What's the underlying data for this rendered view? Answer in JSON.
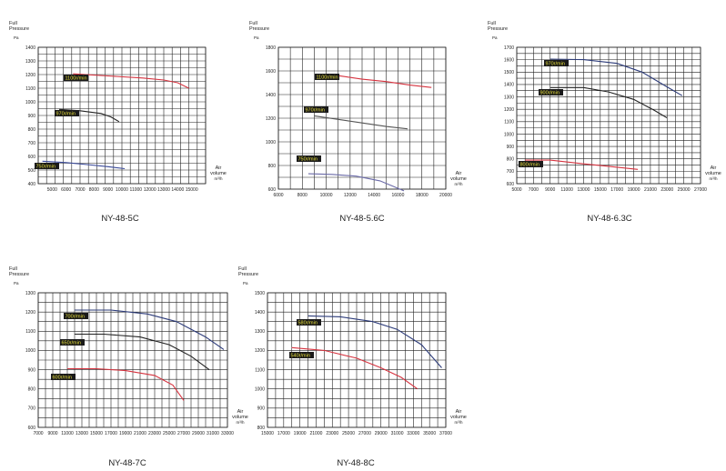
{
  "chart_data": [
    {
      "type": "line",
      "title": "NY-48-5C",
      "ylabel_lines": [
        "Full",
        "Pressure",
        "Pa"
      ],
      "xlabel_lines": [
        "Air",
        "volume",
        "m³/h"
      ],
      "xticks": [
        "5000",
        "6000",
        "7000",
        "8000",
        "9000",
        "10000",
        "11000",
        "12000",
        "13000",
        "14000",
        "15000"
      ],
      "yticks": [
        "400",
        "500",
        "600",
        "700",
        "800",
        "900",
        "1000",
        "1100",
        "1200",
        "1300",
        "1400"
      ],
      "xlim": [
        4000,
        16000
      ],
      "ylim": [
        400,
        1400
      ],
      "series": [
        {
          "name": "1100r/min",
          "color": "#d6333f",
          "x": [
            6500,
            9000,
            11500,
            13000,
            14000,
            14800
          ],
          "y": [
            1205,
            1190,
            1175,
            1160,
            1140,
            1100
          ]
        },
        {
          "name": "970r/min",
          "color": "#222222",
          "x": [
            5500,
            7000,
            8500,
            9200,
            9800
          ],
          "y": [
            945,
            935,
            915,
            890,
            855
          ]
        },
        {
          "name": "750r/min",
          "color": "#3a4a9a",
          "x": [
            4300,
            6000,
            7500,
            9000,
            10200
          ],
          "y": [
            565,
            555,
            540,
            525,
            510
          ]
        }
      ]
    },
    {
      "type": "line",
      "title": "NY-48-5.6C",
      "ylabel_lines": [
        "Full",
        "Pressure",
        "Pa"
      ],
      "xlabel_lines": [
        "Air",
        "volume",
        "m³/h"
      ],
      "xticks": [
        "6000",
        "8000",
        "10000",
        "12000",
        "14000",
        "16000",
        "18000",
        "20000"
      ],
      "yticks": [
        "600",
        "800",
        "1000",
        "1200",
        "1400",
        "1600",
        "1800"
      ],
      "xlim": [
        6000,
        20000
      ],
      "ylim": [
        600,
        1800
      ],
      "series": [
        {
          "name": "1100r/min",
          "color": "#d6333f",
          "x": [
            9500,
            11000,
            13000,
            15000,
            17000,
            18800
          ],
          "y": [
            1560,
            1560,
            1530,
            1510,
            1480,
            1460
          ]
        },
        {
          "name": "970r/min",
          "color": "#555555",
          "x": [
            9000,
            11000,
            13000,
            15000,
            16800
          ],
          "y": [
            1220,
            1190,
            1160,
            1130,
            1110
          ]
        },
        {
          "name": "750r/min",
          "color": "#6a6aa8",
          "x": [
            8500,
            10500,
            12500,
            14500,
            16500
          ],
          "y": [
            730,
            725,
            710,
            670,
            585
          ]
        }
      ]
    },
    {
      "type": "line",
      "title": "NY-48-6.3C",
      "ylabel_lines": [
        "Full",
        "Pressure",
        "Pa"
      ],
      "xlabel_lines": [
        "Air",
        "volume",
        "m³/h"
      ],
      "xticks": [
        "5000",
        "7000",
        "9000",
        "11000",
        "13000",
        "15000",
        "17000",
        "19000",
        "21000",
        "23000",
        "25000",
        "27000"
      ],
      "yticks": [
        "600",
        "700",
        "800",
        "900",
        "1000",
        "1100",
        "1200",
        "1300",
        "1400",
        "1500",
        "1600",
        "1700"
      ],
      "xlim": [
        5000,
        27000
      ],
      "ylim": [
        600,
        1700
      ],
      "series": [
        {
          "name": "970r/min",
          "color": "#2d3c7a",
          "x": [
            9000,
            13000,
            17000,
            20000,
            23000,
            24800
          ],
          "y": [
            1605,
            1600,
            1570,
            1500,
            1380,
            1310
          ]
        },
        {
          "name": "900r/min",
          "color": "#222222",
          "x": [
            9000,
            13000,
            16000,
            19000,
            21500,
            23000
          ],
          "y": [
            1375,
            1375,
            1340,
            1280,
            1190,
            1130
          ]
        },
        {
          "name": "800r/min",
          "color": "#d6333f",
          "x": [
            6000,
            9000,
            13000,
            16000,
            19500
          ],
          "y": [
            790,
            790,
            760,
            740,
            715
          ]
        }
      ]
    },
    {
      "type": "line",
      "title": "NY-48-7C",
      "ylabel_lines": [
        "Full",
        "Pressure",
        "Pa"
      ],
      "xlabel_lines": [
        "Air",
        "volume",
        "m³/h"
      ],
      "xticks": [
        "7000",
        "9000",
        "11000",
        "13000",
        "15000",
        "17000",
        "19000",
        "21000",
        "23000",
        "25000",
        "27000",
        "29000",
        "31000",
        "33000"
      ],
      "yticks": [
        "600",
        "700",
        "800",
        "900",
        "1000",
        "1100",
        "1200",
        "1300"
      ],
      "xlim": [
        7000,
        33000
      ],
      "ylim": [
        600,
        1300
      ],
      "series": [
        {
          "name": "700r/min",
          "color": "#2d3c7a",
          "x": [
            12000,
            17000,
            22000,
            26000,
            30000,
            32500
          ],
          "y": [
            1210,
            1210,
            1190,
            1150,
            1070,
            1005
          ]
        },
        {
          "name": "650r/min",
          "color": "#222222",
          "x": [
            12000,
            16000,
            21000,
            25000,
            28000,
            30500
          ],
          "y": [
            1085,
            1085,
            1070,
            1030,
            970,
            900
          ]
        },
        {
          "name": "600r/min",
          "color": "#d6333f",
          "x": [
            11000,
            15000,
            19000,
            23000,
            25500,
            27000
          ],
          "y": [
            905,
            905,
            895,
            870,
            820,
            740
          ]
        }
      ]
    },
    {
      "type": "line",
      "title": "NY-48-8C",
      "ylabel_lines": [
        "Full",
        "Pressure",
        "Pa"
      ],
      "xlabel_lines": [
        "Air",
        "volume",
        "m³/h"
      ],
      "xticks": [
        "15000",
        "17000",
        "19000",
        "21000",
        "23000",
        "25000",
        "27000",
        "29000",
        "31000",
        "33000",
        "35000",
        "37000"
      ],
      "yticks": [
        "800",
        "900",
        "1000",
        "1100",
        "1200",
        "1300",
        "1400",
        "1500"
      ],
      "xlim": [
        15000,
        37000
      ],
      "ylim": [
        800,
        1500
      ],
      "series": [
        {
          "name": "580r/min",
          "color": "#2d3c7a",
          "x": [
            20000,
            24000,
            28000,
            31000,
            34000,
            36500
          ],
          "y": [
            1380,
            1375,
            1350,
            1310,
            1230,
            1110
          ]
        },
        {
          "name": "540r/min",
          "color": "#d6333f",
          "x": [
            18000,
            22000,
            26000,
            29000,
            31500,
            33500
          ],
          "y": [
            1215,
            1200,
            1160,
            1110,
            1060,
            1000
          ]
        }
      ]
    }
  ]
}
